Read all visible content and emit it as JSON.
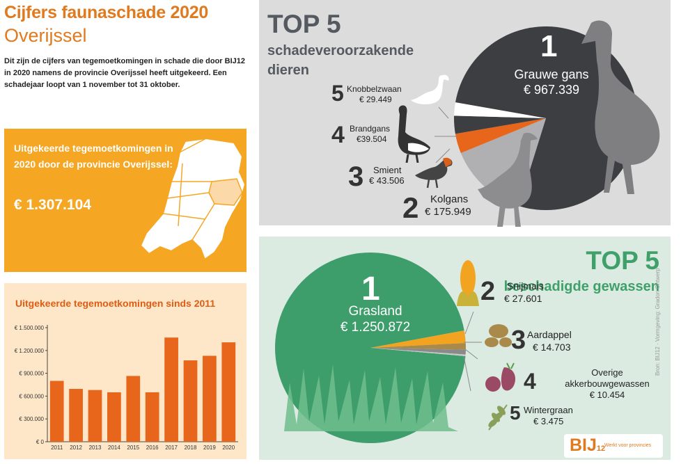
{
  "header": {
    "title": "Cijfers faunaschade 2020",
    "region": "Overijssel",
    "intro": "Dit zijn de cijfers van tegemoetkomingen in schade die door BIJ12 in 2020 namens de provincie Overijssel heeft uitgekeerd. Een schadejaar loopt van 1 november tot 31 oktober."
  },
  "total": {
    "label": "Uitgekeerde tegemoetkomingen in 2020 door de provincie Overijssel:",
    "amount": "€ 1.307.104"
  },
  "animals": {
    "heading": "TOP 5",
    "subheading": "schadeveroorzakende dieren",
    "items": [
      {
        "rank": "1",
        "name": "Grauwe gans",
        "amount": "€ 967.339",
        "value": 967339,
        "color": "#3d3e42"
      },
      {
        "rank": "2",
        "name": "Kolgans",
        "amount": "€ 175.949",
        "value": 175949,
        "color": "#b0b0b2"
      },
      {
        "rank": "3",
        "name": "Smient",
        "amount": "€ 43.506",
        "value": 43506,
        "color": "#e8661c"
      },
      {
        "rank": "4",
        "name": "Brandgans",
        "amount": "€39.504",
        "value": 39504,
        "color": "#3d3e42"
      },
      {
        "rank": "5",
        "name": "Knobbelzwaan",
        "amount": "€ 29.449",
        "value": 29449,
        "color": "#ffffff"
      }
    ]
  },
  "crops": {
    "heading": "TOP 5",
    "subheading": "beschadigde gewassen",
    "items": [
      {
        "rank": "1",
        "name": "Grasland",
        "amount": "€ 1.250.872",
        "value": 1250872,
        "color": "#3e9e6b"
      },
      {
        "rank": "2",
        "name": "Snijmais",
        "amount": "€ 27.601",
        "value": 27601,
        "color": "#f2a31f"
      },
      {
        "rank": "3",
        "name": "Aardappel",
        "amount": "€ 14.703",
        "value": 14703,
        "color": "#a98a4a"
      },
      {
        "rank": "4",
        "name": "Overige akkerbouwgewassen",
        "amount": "€ 10.454",
        "value": 10454,
        "color": "#8a8a8a"
      },
      {
        "rank": "5",
        "name": "Wintergraan",
        "amount": "€ 3.475",
        "value": 3475,
        "color": "#c9c9c9"
      }
    ]
  },
  "chart_data": {
    "type": "bar",
    "title": "Uitgekeerde tegemoetkomingen sinds 2011",
    "categories": [
      "2011",
      "2012",
      "2013",
      "2014",
      "2015",
      "2016",
      "2017",
      "2018",
      "2019",
      "2020"
    ],
    "values": [
      800000,
      695000,
      680000,
      650000,
      865000,
      650000,
      1370000,
      1070000,
      1130000,
      1307104
    ],
    "yticks": [
      "€ 0",
      "€ 300.000",
      "€ 600.000",
      "€ 900.000",
      "€ 1.200.000",
      "€ 1.500.000"
    ],
    "ylim": [
      0,
      1500000
    ],
    "color": "#e8661c"
  },
  "footer": {
    "logo": "BIJ12",
    "tagline": "Werkt voor provincies",
    "credit": "Bron: BIJ12 · Vormgeving: Gradon Ontwerp"
  }
}
